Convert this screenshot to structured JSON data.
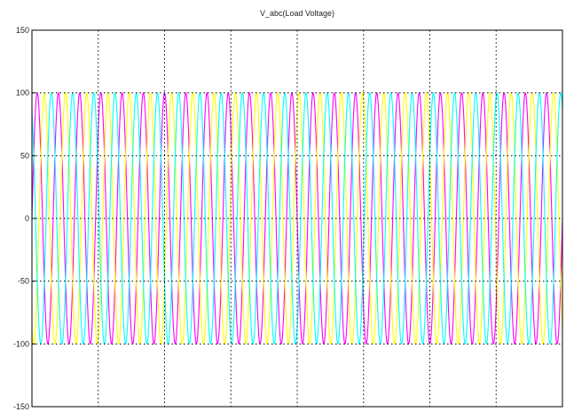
{
  "chart_data": {
    "type": "line",
    "title": "V_abc(Load Voltage)",
    "xlabel": "",
    "ylabel": "",
    "ylim": [
      -150,
      150
    ],
    "yticks": [
      -150,
      -100,
      -50,
      0,
      50,
      100,
      150
    ],
    "ytick_labels": [
      "-150",
      "-100",
      "-50",
      "0",
      "50",
      "100",
      "150"
    ],
    "x_gridlines": 7,
    "grid": true,
    "grid_style": "dotted",
    "legend": "none",
    "cycles_shown": 25,
    "series": [
      {
        "amplitude": 100,
        "phase_deg": 0,
        "color": "#ff00ff"
      },
      {
        "amplitude": 100,
        "phase_deg": -120,
        "color": "#ffff00"
      },
      {
        "amplitude": 100,
        "phase_deg": 120,
        "color": "#00ffff"
      }
    ]
  }
}
